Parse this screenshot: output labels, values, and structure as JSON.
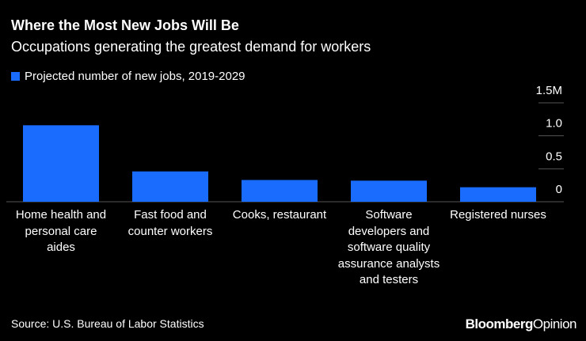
{
  "chart_data": {
    "type": "bar",
    "title": "Where the Most New Jobs Will Be",
    "subtitle": "Occupations generating the greatest demand for workers",
    "categories": [
      "Home health and personal care aides",
      "Fast food and counter workers",
      "Cooks, restaurant",
      "Software developers and software quality assurance analysts and testers",
      "Registered nurses"
    ],
    "series": [
      {
        "name": "Projected number of new jobs, 2019-2029",
        "color": "#1a6cff",
        "values": [
          1.16,
          0.46,
          0.33,
          0.32,
          0.22
        ]
      }
    ],
    "ylim": [
      0,
      1.5
    ],
    "yticks": [
      0,
      0.5,
      {
        "value": 1,
        "label": "1.0"
      },
      {
        "value": 1.5,
        "label": "1.5M"
      }
    ],
    "source": "Source: U.S. Bureau of Labor Statistics",
    "logo": [
      "Bloomberg",
      "Opinion"
    ]
  }
}
